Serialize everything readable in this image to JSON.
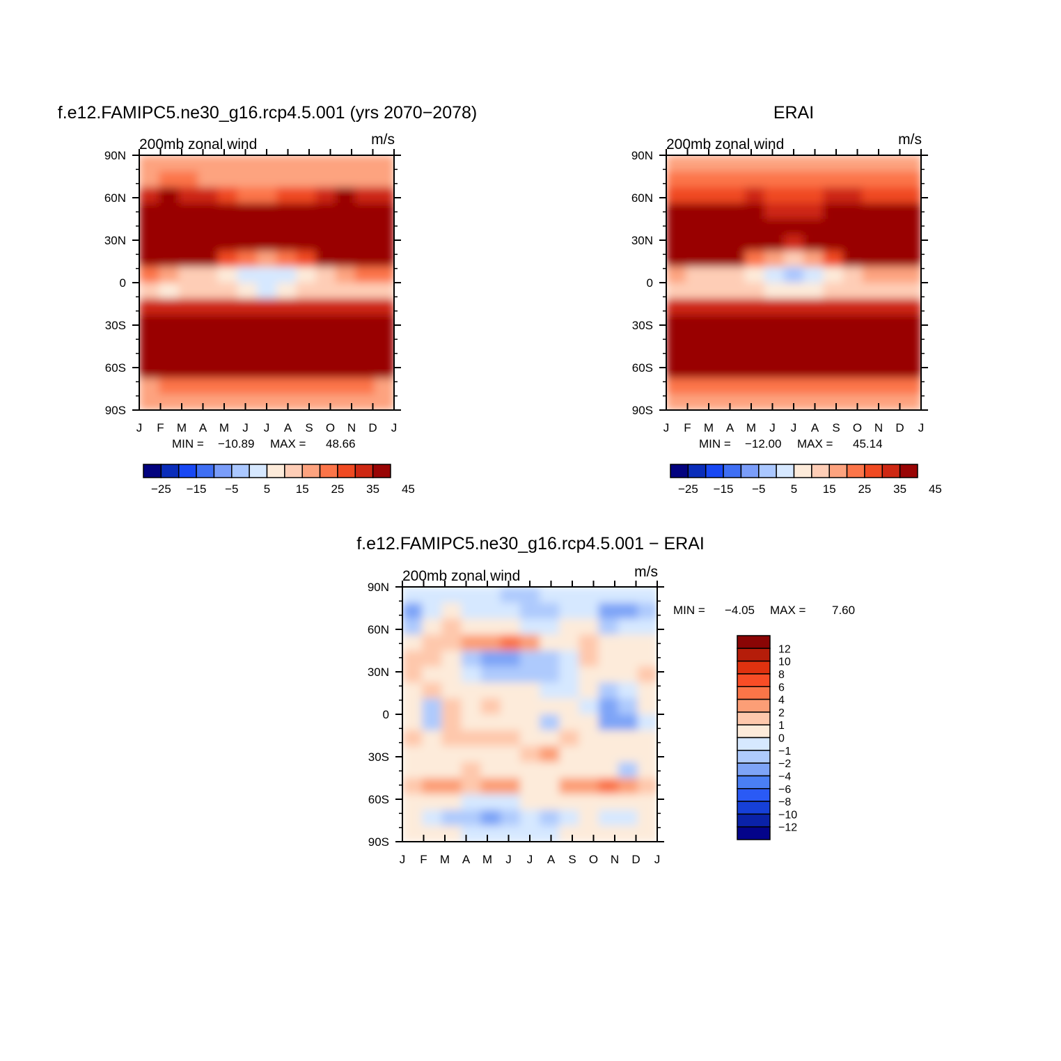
{
  "chart_data": [
    {
      "type": "heatmap",
      "title": "f.e12.FAMIPC5.ne30_g16.rcp4.5.001 (yrs 2070−2078)",
      "subtitle_left": "200mb zonal wind",
      "subtitle_right": "m/s",
      "x_ticks": [
        "J",
        "F",
        "M",
        "A",
        "M",
        "J",
        "J",
        "A",
        "S",
        "O",
        "N",
        "D",
        "J"
      ],
      "y_ticks": [
        "90N",
        "60N",
        "30N",
        "0",
        "30S",
        "60S",
        "90S"
      ],
      "min_label": "MIN =",
      "min_value": "−10.89",
      "max_label": "MAX =",
      "max_value": "48.66",
      "colorbar_labels": [
        "−25",
        "−15",
        "−5",
        "5",
        "15",
        "25",
        "35",
        "45"
      ],
      "colorbar_levels": [
        -30,
        -25,
        -20,
        -15,
        -10,
        -5,
        0,
        5,
        10,
        15,
        20,
        25,
        30,
        35,
        40,
        45
      ],
      "grid": [
        [
          9,
          9,
          9,
          9,
          9,
          9,
          9,
          9,
          9,
          9,
          9,
          9,
          9
        ],
        [
          9,
          10,
          10,
          9,
          9,
          9,
          9,
          9,
          9,
          9,
          9,
          9,
          9
        ],
        [
          12,
          13,
          12,
          12,
          11,
          10,
          10,
          11,
          11,
          12,
          13,
          12,
          12
        ],
        [
          14,
          14,
          14,
          14,
          14,
          13,
          13,
          13,
          14,
          14,
          15,
          14,
          14
        ],
        [
          18,
          18,
          17,
          16,
          15,
          14,
          15,
          16,
          17,
          18,
          18,
          18,
          18
        ],
        [
          20,
          21,
          20,
          18,
          16,
          14,
          13,
          14,
          16,
          18,
          20,
          21,
          21
        ],
        [
          18,
          18,
          16,
          14,
          11,
          10,
          9,
          10,
          11,
          13,
          15,
          17,
          18
        ],
        [
          10,
          9,
          8,
          8,
          7,
          6,
          6,
          6,
          7,
          8,
          9,
          10,
          10
        ],
        [
          8,
          7,
          8,
          8,
          8,
          7,
          6,
          7,
          8,
          8,
          8,
          8,
          8
        ],
        [
          12,
          12,
          12,
          12,
          12,
          12,
          12,
          12,
          12,
          12,
          12,
          12,
          12
        ],
        [
          16,
          16,
          17,
          18,
          18,
          19,
          20,
          19,
          18,
          17,
          16,
          16,
          16
        ],
        [
          17,
          17,
          17,
          17,
          17,
          18,
          18,
          18,
          17,
          17,
          17,
          17,
          17
        ],
        [
          17,
          17,
          17,
          17,
          17,
          17,
          17,
          17,
          17,
          17,
          17,
          17,
          17
        ],
        [
          13,
          13,
          14,
          14,
          14,
          14,
          14,
          14,
          14,
          14,
          14,
          14,
          13
        ],
        [
          9,
          10,
          10,
          10,
          10,
          10,
          10,
          10,
          10,
          10,
          10,
          10,
          9
        ],
        [
          9,
          9,
          9,
          9,
          9,
          9,
          9,
          9,
          9,
          9,
          9,
          9,
          9
        ]
      ]
    },
    {
      "type": "heatmap",
      "title": "ERAI",
      "subtitle_left": "200mb zonal wind",
      "subtitle_right": "m/s",
      "x_ticks": [
        "J",
        "F",
        "M",
        "A",
        "M",
        "J",
        "J",
        "A",
        "S",
        "O",
        "N",
        "D",
        "J"
      ],
      "y_ticks": [
        "90N",
        "60N",
        "30N",
        "0",
        "30S",
        "60S",
        "90S"
      ],
      "min_label": "MIN =",
      "min_value": "−12.00",
      "max_label": "MAX =",
      "max_value": "45.14",
      "colorbar_labels": [
        "−25",
        "−15",
        "−5",
        "5",
        "15",
        "25",
        "35",
        "45"
      ],
      "colorbar_levels": [
        -30,
        -25,
        -20,
        -15,
        -10,
        -5,
        0,
        5,
        10,
        15,
        20,
        25,
        30,
        35,
        40,
        45
      ],
      "grid": [
        [
          9,
          9,
          9,
          9,
          9,
          9,
          9,
          9,
          9,
          9,
          9,
          9,
          9
        ],
        [
          10,
          10,
          10,
          10,
          10,
          10,
          10,
          10,
          10,
          10,
          10,
          10,
          10
        ],
        [
          11,
          11,
          11,
          11,
          12,
          11,
          11,
          11,
          12,
          12,
          11,
          11,
          11
        ],
        [
          13,
          13,
          13,
          13,
          13,
          12,
          12,
          12,
          13,
          14,
          14,
          13,
          13
        ],
        [
          17,
          17,
          17,
          16,
          15,
          14,
          14,
          15,
          16,
          17,
          17,
          17,
          17
        ],
        [
          19,
          20,
          19,
          17,
          15,
          13,
          12,
          13,
          15,
          17,
          19,
          20,
          20
        ],
        [
          17,
          17,
          15,
          13,
          10,
          9,
          8,
          9,
          11,
          13,
          15,
          16,
          17
        ],
        [
          9,
          8,
          8,
          8,
          7,
          6,
          5,
          6,
          7,
          8,
          9,
          9,
          9
        ],
        [
          8,
          8,
          8,
          8,
          8,
          7,
          7,
          7,
          8,
          8,
          8,
          8,
          8
        ],
        [
          12,
          12,
          12,
          12,
          12,
          12,
          12,
          12,
          12,
          12,
          12,
          12,
          12
        ],
        [
          16,
          16,
          17,
          18,
          18,
          19,
          19,
          19,
          18,
          17,
          16,
          16,
          16
        ],
        [
          17,
          17,
          17,
          17,
          17,
          17,
          17,
          17,
          17,
          17,
          17,
          17,
          17
        ],
        [
          16,
          16,
          16,
          16,
          16,
          16,
          16,
          16,
          16,
          16,
          16,
          16,
          16
        ],
        [
          13,
          13,
          13,
          13,
          13,
          13,
          13,
          13,
          13,
          13,
          13,
          13,
          13
        ],
        [
          10,
          10,
          10,
          10,
          10,
          10,
          10,
          10,
          10,
          10,
          10,
          10,
          10
        ],
        [
          9,
          9,
          9,
          9,
          9,
          9,
          9,
          9,
          9,
          9,
          9,
          9,
          9
        ]
      ]
    },
    {
      "type": "heatmap",
      "title": "f.e12.FAMIPC5.ne30_g16.rcp4.5.001 − ERAI",
      "subtitle_left": "200mb zonal wind",
      "subtitle_right": "m/s",
      "x_ticks": [
        "J",
        "F",
        "M",
        "A",
        "M",
        "J",
        "J",
        "A",
        "S",
        "O",
        "N",
        "D",
        "J"
      ],
      "y_ticks": [
        "90N",
        "60N",
        "30N",
        "0",
        "30S",
        "60S",
        "90S"
      ],
      "min_label": "MIN =",
      "min_value": "−4.05",
      "max_label": "MAX =",
      "max_value": "7.60",
      "colorbar_labels": [
        "12",
        "10",
        "8",
        "6",
        "4",
        "2",
        "1",
        "0",
        "−1",
        "−2",
        "−4",
        "−6",
        "−8",
        "−10",
        "−12"
      ],
      "colorbar_levels": [
        -12,
        -10,
        -8,
        -6,
        -4,
        -2,
        -1,
        0,
        1,
        2,
        4,
        6,
        8,
        10,
        12
      ],
      "grid": [
        [
          7,
          7,
          7,
          7,
          7,
          6,
          6,
          7,
          7,
          7,
          7,
          7,
          7
        ],
        [
          5,
          7,
          8,
          7,
          7,
          7,
          6,
          6,
          7,
          7,
          5,
          5,
          6
        ],
        [
          6,
          8,
          9,
          8,
          8,
          8,
          7,
          7,
          8,
          8,
          6,
          7,
          7
        ],
        [
          8,
          9,
          9,
          10,
          10,
          11,
          10,
          8,
          8,
          9,
          8,
          8,
          8
        ],
        [
          9,
          9,
          8,
          6,
          5,
          5,
          6,
          6,
          7,
          9,
          8,
          8,
          8
        ],
        [
          9,
          8,
          8,
          7,
          6,
          6,
          6,
          6,
          7,
          8,
          8,
          8,
          9
        ],
        [
          8,
          9,
          8,
          8,
          8,
          8,
          8,
          7,
          7,
          8,
          6,
          7,
          8
        ],
        [
          8,
          6,
          9,
          8,
          9,
          8,
          8,
          8,
          8,
          7,
          5,
          6,
          8
        ],
        [
          8,
          6,
          9,
          8,
          8,
          8,
          8,
          6,
          8,
          8,
          5,
          5,
          7
        ],
        [
          9,
          8,
          9,
          9,
          9,
          9,
          8,
          8,
          9,
          8,
          8,
          8,
          8
        ],
        [
          8,
          8,
          8,
          8,
          8,
          8,
          9,
          10,
          8,
          8,
          8,
          8,
          8
        ],
        [
          8,
          8,
          8,
          9,
          8,
          8,
          8,
          8,
          8,
          8,
          8,
          6,
          8
        ],
        [
          9,
          10,
          10,
          9,
          10,
          10,
          8,
          8,
          10,
          10,
          11,
          10,
          9
        ],
        [
          8,
          8,
          8,
          7,
          7,
          7,
          8,
          8,
          8,
          8,
          8,
          8,
          8
        ],
        [
          8,
          7,
          6,
          6,
          5,
          6,
          7,
          6,
          7,
          8,
          7,
          7,
          8
        ],
        [
          8,
          8,
          8,
          7,
          7,
          7,
          7,
          7,
          8,
          8,
          8,
          8,
          8
        ]
      ]
    }
  ],
  "colors": {
    "main_palette": [
      "#03037f",
      "#0a2dba",
      "#1848f4",
      "#3f6ff4",
      "#7a9df9",
      "#aac7ff",
      "#d6e8ff",
      "#fdebda",
      "#fecdb6",
      "#fda37f",
      "#fc7549",
      "#f04a22",
      "#ce2813",
      "#990505"
    ],
    "diff_palette": [
      "#04048a",
      "#0a22a8",
      "#1640d8",
      "#2a5af5",
      "#4a7ff5",
      "#7ea4f7",
      "#aecafd",
      "#d6e8ff",
      "#fdebda",
      "#fec8ac",
      "#fc9e76",
      "#fa7548",
      "#f84d26",
      "#e0320f",
      "#b51d0a",
      "#8a0505"
    ]
  }
}
